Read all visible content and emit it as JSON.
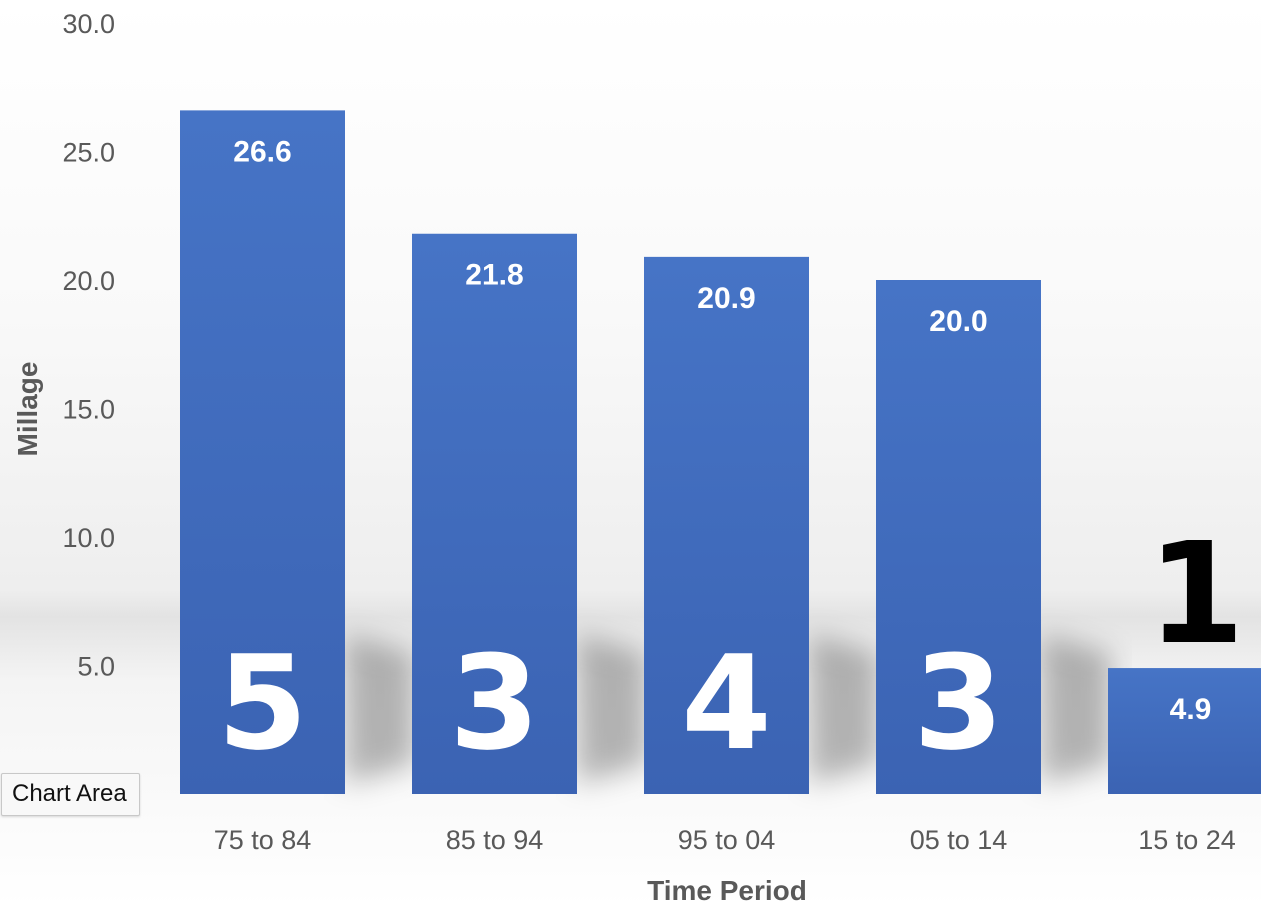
{
  "chart_data": {
    "type": "bar",
    "title": "",
    "xlabel": "Time Period",
    "ylabel": "Millage",
    "categories": [
      "75 to 84",
      "85 to 94",
      "95 to 04",
      "05 to 14",
      "15 to 24"
    ],
    "values": [
      26.6,
      21.8,
      20.9,
      20.0,
      4.9
    ],
    "data_labels": [
      "26.6",
      "21.8",
      "20.9",
      "20.0",
      "4.9"
    ],
    "ylim": [
      0,
      30
    ],
    "y_ticks": [
      "5.0",
      "10.0",
      "15.0",
      "20.0",
      "25.0",
      "30.0"
    ],
    "grid": false,
    "legend": "none",
    "bar_color": "#4472c4",
    "annotations": {
      "bar_numbers": [
        "5",
        "3",
        "4",
        "3"
      ],
      "callout": "1"
    }
  },
  "tooltip": {
    "label": "Chart Area"
  }
}
